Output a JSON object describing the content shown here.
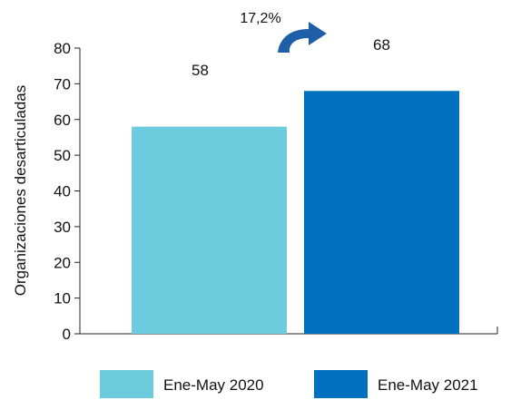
{
  "chart_data": {
    "type": "bar",
    "categories": [
      "Ene-May 2020",
      "Ene-May 2021"
    ],
    "values": [
      58,
      68
    ],
    "ylabel": "Organizaciones desarticuladas",
    "xlabel": "",
    "ylim": [
      0,
      80
    ],
    "yticks": [
      0,
      10,
      20,
      30,
      40,
      50,
      60,
      70,
      80
    ],
    "colors": [
      "#6ccbdc",
      "#0070bf"
    ],
    "legend_position": "bottom",
    "annotation": "17,2%",
    "grid": false
  },
  "colors": {
    "arrow": "#1f5fa8",
    "axis": "#222222"
  }
}
